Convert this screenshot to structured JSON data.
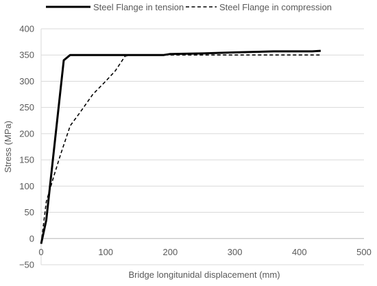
{
  "chart_data": {
    "type": "line",
    "title": "",
    "xlabel": "Bridge longitunidal displacement (mm)",
    "ylabel": "Stress (MPa)",
    "xlim": [
      0,
      500
    ],
    "ylim": [
      -50,
      400
    ],
    "x_ticks": [
      0,
      100,
      200,
      300,
      400,
      500
    ],
    "y_ticks": [
      -50,
      0,
      50,
      100,
      150,
      200,
      250,
      300,
      350,
      400
    ],
    "grid": "horizontal",
    "legend_position": "top",
    "series": [
      {
        "name": "Steel Flange in tension",
        "line_style": "solid",
        "color": "#000000",
        "x": [
          0,
          8,
          35,
          45,
          100,
          190,
          200,
          250,
          300,
          360,
          420,
          433
        ],
        "y": [
          -10,
          35,
          340,
          350,
          350,
          350,
          352,
          353,
          355,
          357,
          357,
          358
        ]
      },
      {
        "name": "Steel Flange in compression",
        "line_style": "dashed",
        "color": "#000000",
        "x": [
          0,
          8,
          20,
          30,
          45,
          60,
          80,
          100,
          115,
          130,
          140,
          200,
          300,
          433
        ],
        "y": [
          -10,
          70,
          120,
          160,
          215,
          240,
          275,
          300,
          320,
          348,
          350,
          350,
          350,
          350
        ]
      }
    ]
  }
}
